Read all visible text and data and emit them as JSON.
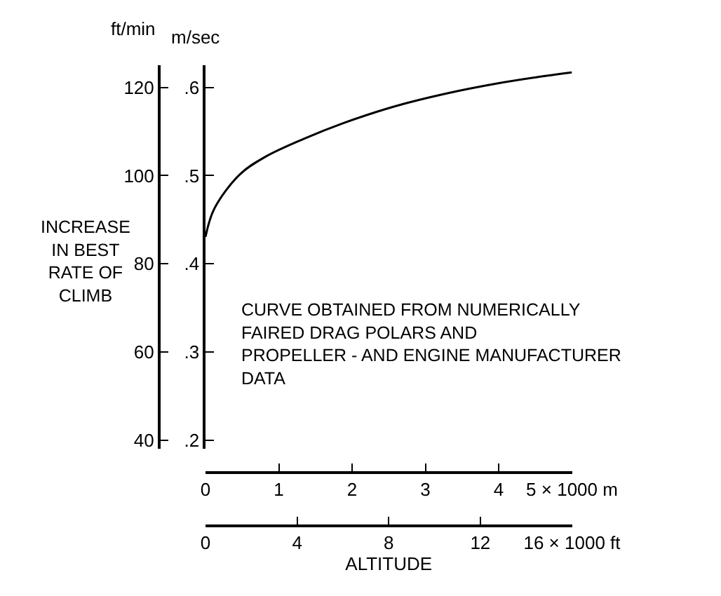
{
  "chart_data": {
    "type": "line",
    "x": [
      0,
      0.12,
      0.47,
      0.82,
      1.35,
      1.88,
      2.58,
      3.28,
      3.98,
      4.51,
      5
    ],
    "series": [
      {
        "color": "#000000",
        "values": [
          86.1,
          92.5,
          100.3,
          104.3,
          108.4,
          111.9,
          115.7,
          118.6,
          120.9,
          122.3,
          123.4
        ]
      }
    ],
    "xlim": [
      0,
      5
    ],
    "xticks": [
      0,
      1,
      2,
      3,
      4,
      {
        "value": 5,
        "label": "5 × 1000 m"
      }
    ],
    "x2lim": [
      0,
      16
    ],
    "x2ticks": [
      0,
      4,
      8,
      12,
      {
        "value": 16,
        "label": "16 × 1000 ft"
      }
    ],
    "xlabel": "ALTITUDE",
    "ylim": [
      38,
      125
    ],
    "yticks": [
      40,
      60,
      80,
      100,
      120
    ],
    "y2lim": [
      0.19,
      0.625
    ],
    "y2ticks": [
      {
        "value": 0.2,
        "label": ".2"
      },
      {
        "value": 0.3,
        "label": ".3"
      },
      {
        "value": 0.4,
        "label": ".4"
      },
      {
        "value": 0.5,
        "label": ".5"
      },
      {
        "value": 0.6,
        "label": ".6"
      }
    ],
    "ylabel": "ft/min",
    "y2label": "m/sec",
    "annotations": [
      "INCREASE\nIN BEST\nRATE OF\nCLIMB",
      "CURVE OBTAINED FROM NUMERICALLY\nFAIRED DRAG POLARS AND\nPROPELLER - AND ENGINE MANUFACTURER\nDATA"
    ],
    "marker": "none",
    "line_style": "solid"
  }
}
